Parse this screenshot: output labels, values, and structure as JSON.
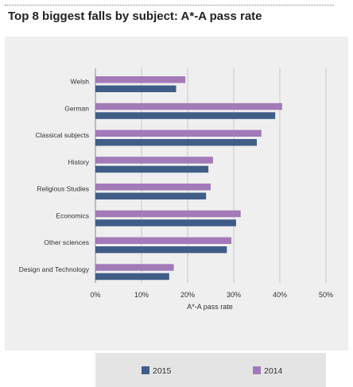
{
  "chart_data": {
    "type": "bar",
    "orientation": "horizontal",
    "title": "Top 8 biggest falls by subject: A*-A pass rate",
    "xlabel": "A*-A pass rate",
    "ylabel": "",
    "xlim": [
      0,
      50
    ],
    "xticks": [
      "0%",
      "10%",
      "20%",
      "30%",
      "40%",
      "50%"
    ],
    "grid": true,
    "legend_position": "bottom",
    "categories": [
      "Welsh",
      "German",
      "Classical subjects",
      "History",
      "Religious Studies",
      "Economics",
      "Other sciences",
      "Design and Technology"
    ],
    "series": [
      {
        "name": "2014",
        "color": "#a37ab8",
        "values": [
          19.5,
          40.5,
          36,
          25.5,
          25,
          31.5,
          29.5,
          17
        ]
      },
      {
        "name": "2015",
        "color": "#3f5d87",
        "values": [
          17.5,
          39,
          35,
          24.5,
          24,
          30.5,
          28.5,
          16
        ]
      }
    ]
  }
}
